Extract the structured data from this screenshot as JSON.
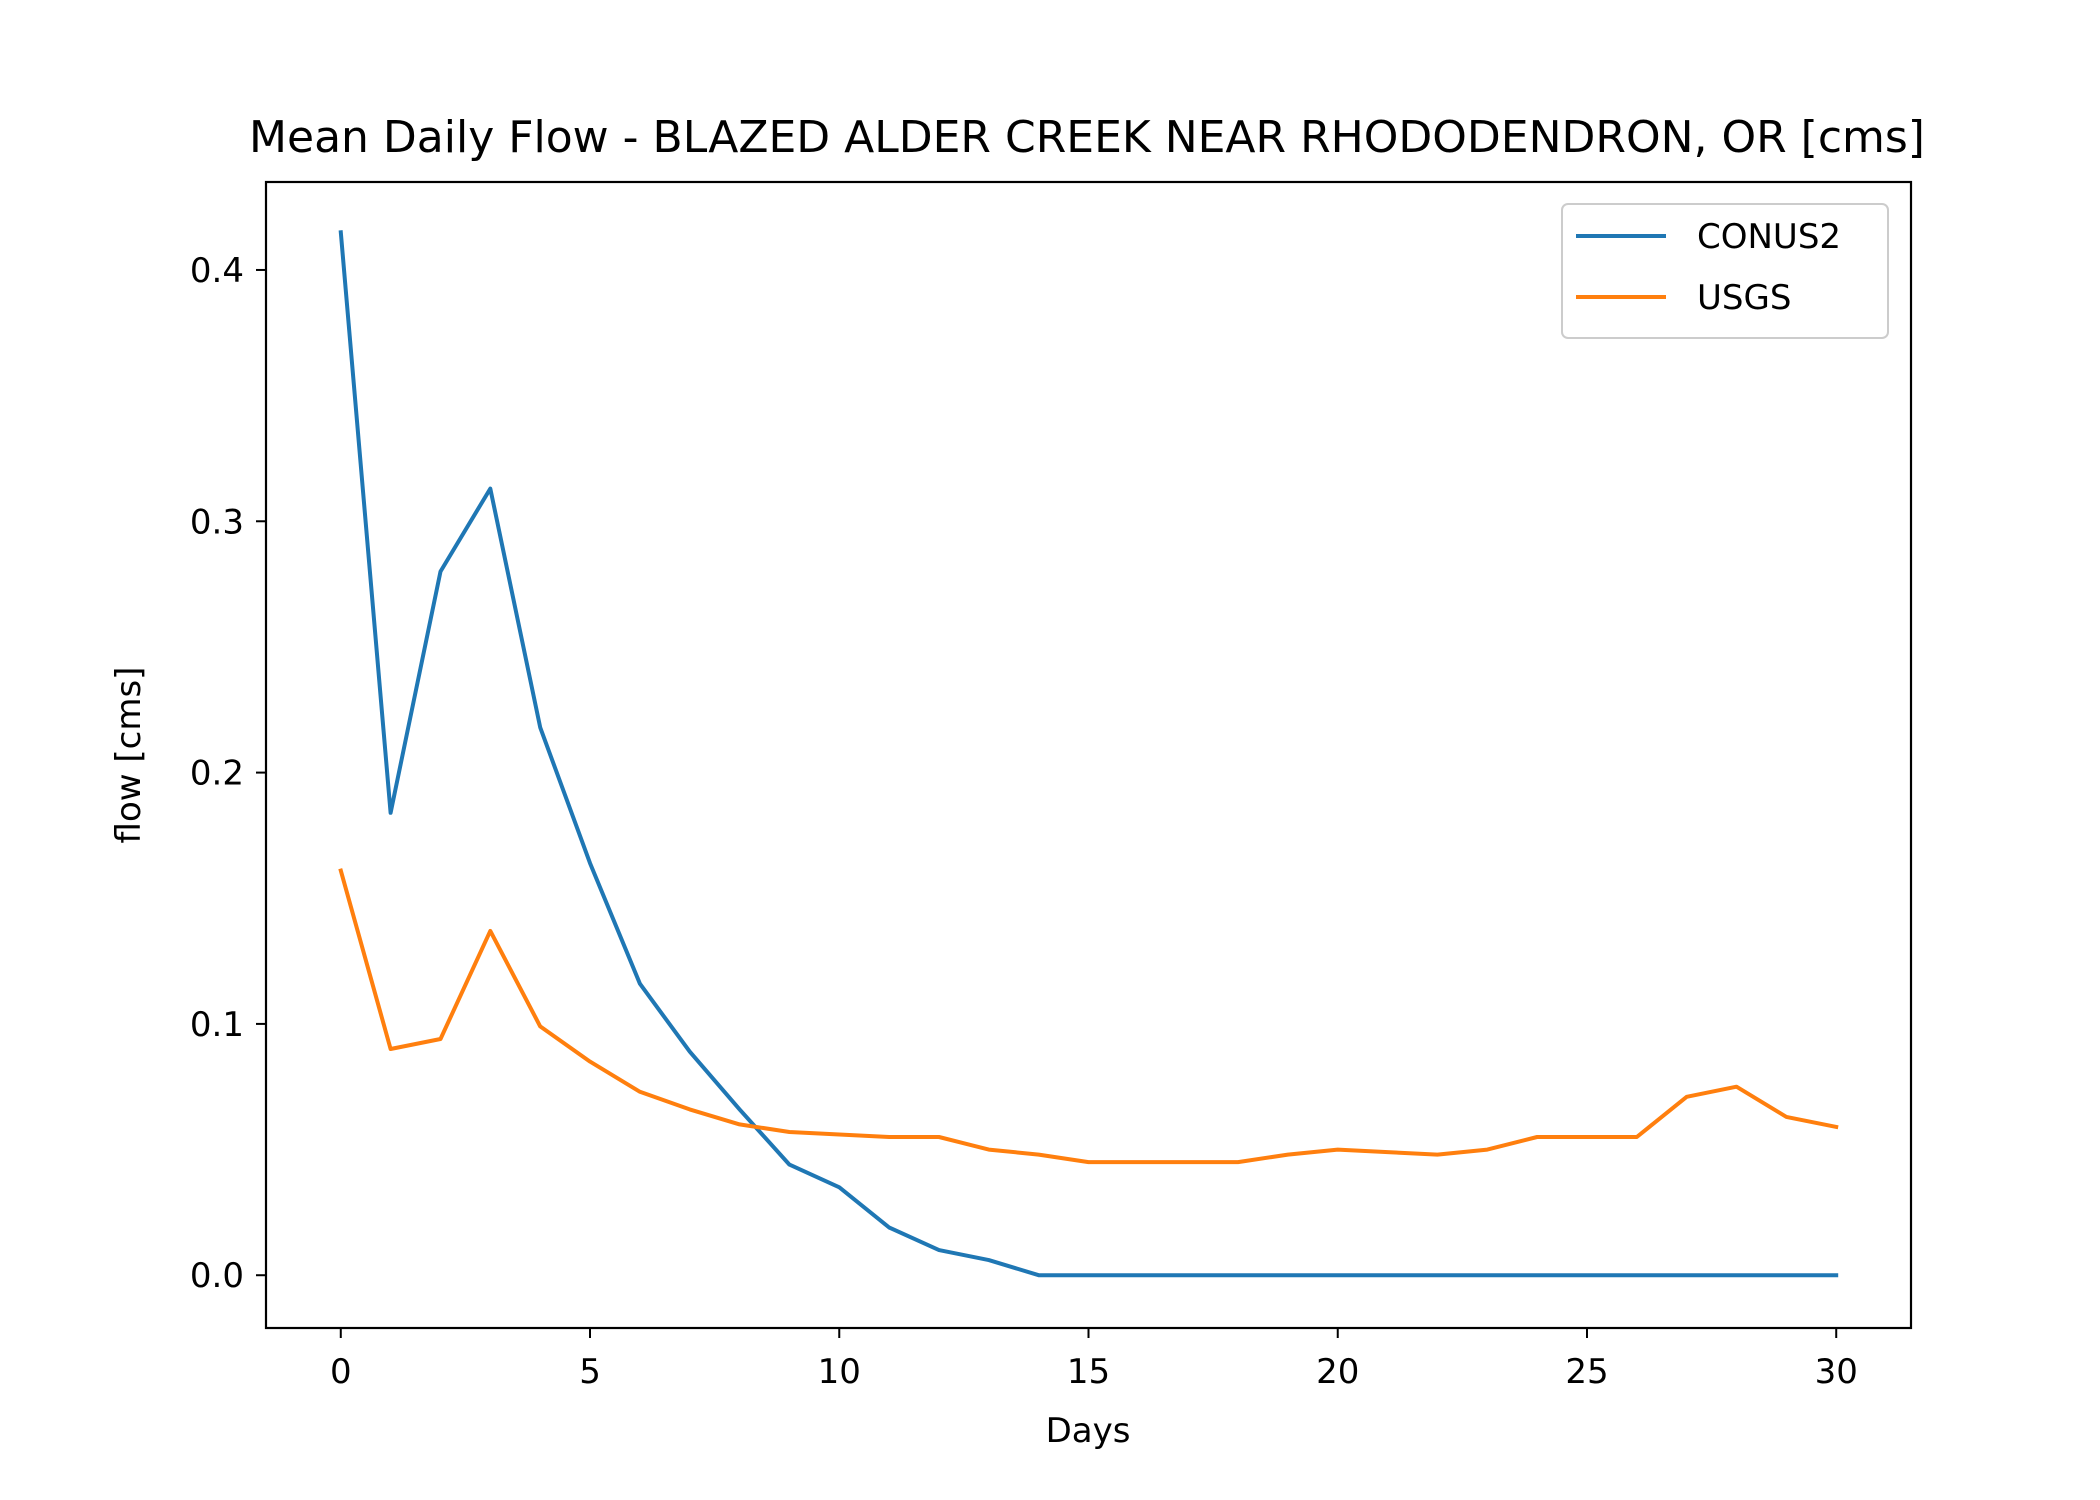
{
  "chart_data": {
    "type": "line",
    "title": "Mean Daily Flow - BLAZED ALDER CREEK NEAR RHODODENDRON, OR [cms]",
    "xlabel": "Days",
    "ylabel": "flow [cms]",
    "xlim": [
      -1.5,
      31.5
    ],
    "ylim": [
      -0.021,
      0.435
    ],
    "xticks": [
      0,
      5,
      10,
      15,
      20,
      25,
      30
    ],
    "xtick_labels": [
      "0",
      "5",
      "10",
      "15",
      "20",
      "25",
      "30"
    ],
    "yticks": [
      0.0,
      0.1,
      0.2,
      0.3,
      0.4
    ],
    "ytick_labels": [
      "0.0",
      "0.1",
      "0.2",
      "0.3",
      "0.4"
    ],
    "grid": false,
    "legend_position": "top-right",
    "x": [
      0,
      1,
      2,
      3,
      4,
      5,
      6,
      7,
      8,
      9,
      10,
      11,
      12,
      13,
      14,
      15,
      16,
      17,
      18,
      19,
      20,
      21,
      22,
      23,
      24,
      25,
      26,
      27,
      28,
      29,
      30
    ],
    "series": [
      {
        "name": "CONUS2",
        "color": "#1f77b4",
        "values": [
          0.415,
          0.184,
          0.28,
          0.313,
          0.218,
          0.164,
          0.116,
          0.089,
          0.066,
          0.044,
          0.035,
          0.019,
          0.01,
          0.006,
          0.0,
          0.0,
          0.0,
          0.0,
          0.0,
          0.0,
          0.0,
          0.0,
          0.0,
          0.0,
          0.0,
          0.0,
          0.0,
          0.0,
          0.0,
          0.0,
          0.0
        ]
      },
      {
        "name": "USGS",
        "color": "#ff7f0e",
        "values": [
          0.161,
          0.09,
          0.094,
          0.137,
          0.099,
          0.085,
          0.073,
          0.066,
          0.06,
          0.057,
          0.056,
          0.055,
          0.055,
          0.05,
          0.048,
          0.045,
          0.045,
          0.045,
          0.045,
          0.048,
          0.05,
          0.049,
          0.048,
          0.05,
          0.055,
          0.055,
          0.055,
          0.071,
          0.075,
          0.063,
          0.059
        ]
      }
    ]
  }
}
